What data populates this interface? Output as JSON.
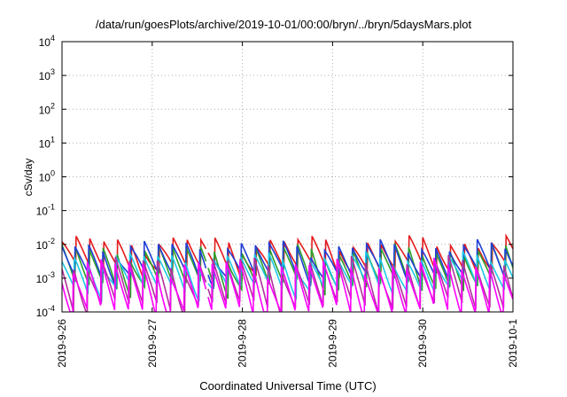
{
  "title": "/data/run/goesPlots/archive/2019-10-01/00:00/bryn/../bryn/5daysMars.plot",
  "chart_data": {
    "type": "line",
    "title": "/data/run/goesPlots/archive/2019-10-01/00:00/bryn/../bryn/5daysMars.plot",
    "xlabel": "Coordinated Universal Time (UTC)",
    "ylabel": "cSv/day",
    "y_scale": "log",
    "ylim": [
      0.0001,
      10000
    ],
    "xlim": [
      "2019-09-26",
      "2019-10-01"
    ],
    "x_ticks": [
      "2019-9-26",
      "2019-9-27",
      "2019-9-28",
      "2019-9-29",
      "2019-9-30",
      "2019-10-1"
    ],
    "y_ticks": [
      {
        "base": "10",
        "exp": "-4"
      },
      {
        "base": "10",
        "exp": "-3"
      },
      {
        "base": "10",
        "exp": "-2"
      },
      {
        "base": "10",
        "exp": "-1"
      },
      {
        "base": "10",
        "exp": "0"
      },
      {
        "base": "10",
        "exp": "1"
      },
      {
        "base": "10",
        "exp": "2"
      },
      {
        "base": "10",
        "exp": "3"
      },
      {
        "base": "10",
        "exp": "4"
      }
    ],
    "grid": true,
    "legend": "none",
    "series": [
      {
        "color": "#e41a1c",
        "peak": 0.012,
        "trough": 0.0018
      },
      {
        "color": "#2ca02c",
        "peak": 0.007,
        "trough": 0.0006
      },
      {
        "color": "#1f3fd6",
        "peak": 0.009,
        "trough": 0.0012
      },
      {
        "color": "#1ec8e6",
        "peak": 0.004,
        "trough": 0.0005
      },
      {
        "color": "#b0309c",
        "peak": 0.003,
        "trough": 0.00015
      },
      {
        "color": "#ff00ff",
        "peak": 0.0025,
        "trough": 0.0001
      }
    ],
    "cycles_per_day": 6.5
  }
}
